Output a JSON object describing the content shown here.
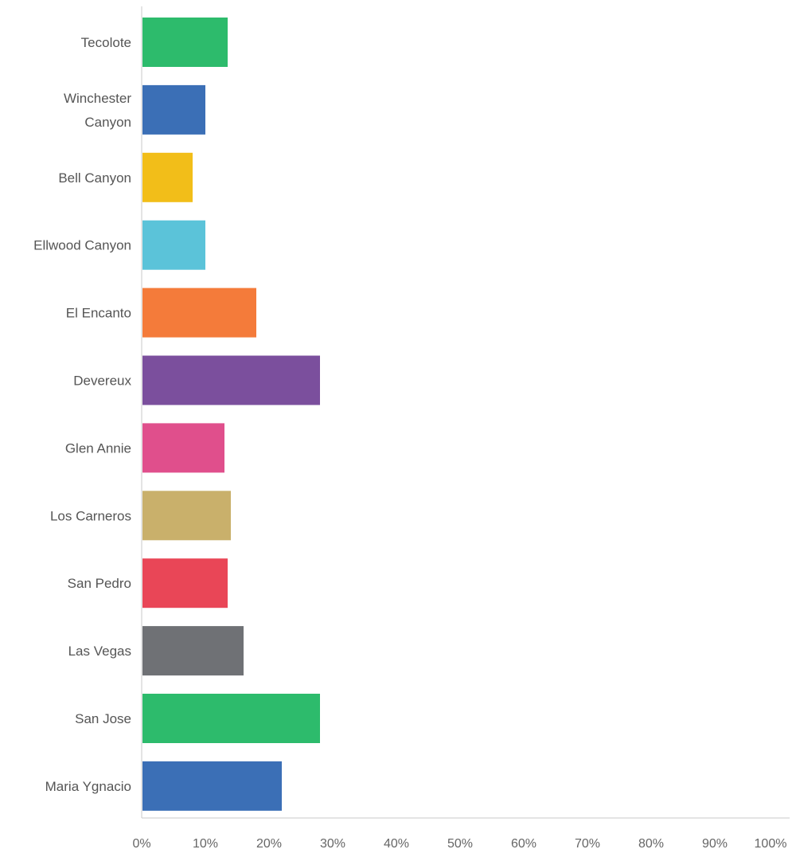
{
  "chart_data": {
    "type": "bar",
    "orientation": "horizontal",
    "categories": [
      [
        "Tecolote"
      ],
      [
        "Winchester",
        "Canyon"
      ],
      [
        "Bell Canyon"
      ],
      [
        "Ellwood Canyon"
      ],
      [
        "El Encanto"
      ],
      [
        "Devereux"
      ],
      [
        "Glen Annie"
      ],
      [
        "Los Carneros"
      ],
      [
        "San Pedro"
      ],
      [
        "Las Vegas"
      ],
      [
        "San Jose"
      ],
      [
        "Maria Ygnacio"
      ]
    ],
    "values": [
      13.5,
      10,
      8,
      10,
      18,
      28,
      13,
      14,
      13.5,
      16,
      28,
      22
    ],
    "colors": [
      "#2dbb6c",
      "#3b6fb6",
      "#f2be19",
      "#5bc3d9",
      "#f47b3a",
      "#7b4f9d",
      "#e04f8c",
      "#c9b06b",
      "#e94657",
      "#6f7175",
      "#2dbb6c",
      "#3b6fb6"
    ],
    "xlim": [
      0,
      100
    ],
    "x_ticks": [
      "0%",
      "10%",
      "20%",
      "30%",
      "40%",
      "50%",
      "60%",
      "70%",
      "80%",
      "90%",
      "100%"
    ],
    "title": "",
    "xlabel": "",
    "ylabel": "",
    "grid": false,
    "legend": "none"
  }
}
